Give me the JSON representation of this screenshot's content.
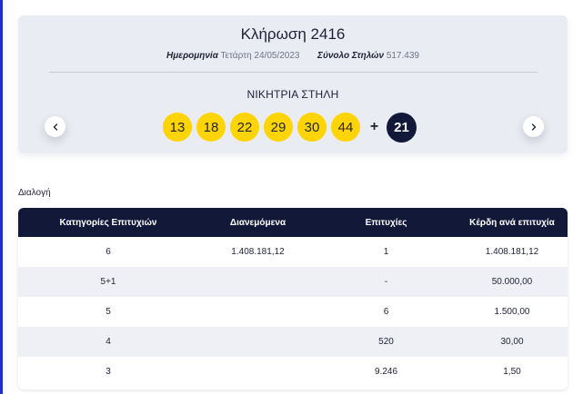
{
  "draw": {
    "title": "Κλήρωση 2416",
    "date_label": "Ημερομηνία",
    "date_value": "Τετάρτη 24/05/2023",
    "columns_label": "Σύνολο Στηλών",
    "columns_value": "517.439",
    "winning_label": "ΝΙΚΗΤΡΙΑ ΣΤΗΛΗ",
    "numbers": [
      "13",
      "18",
      "22",
      "29",
      "30",
      "44"
    ],
    "plus": "+",
    "joker": "21",
    "prev_icon": "chevron-left-icon",
    "next_icon": "chevron-right-icon"
  },
  "section": {
    "label": "Διαλογή"
  },
  "table": {
    "headers": [
      "Κατηγορίες Επιτυχιών",
      "Διανεμόμενα",
      "Επιτυχίες",
      "Κέρδη ανά επιτυχία"
    ],
    "rows": [
      [
        "6",
        "1.408.181,12",
        "1",
        "1.408.181,12"
      ],
      [
        "5+1",
        "",
        "-",
        "50.000,00"
      ],
      [
        "5",
        "",
        "6",
        "1.500,00"
      ],
      [
        "4",
        "",
        "520",
        "30,00"
      ],
      [
        "3",
        "",
        "9.246",
        "1,50"
      ]
    ]
  },
  "colors": {
    "accent_yellow": "#ffd400",
    "navy": "#111838",
    "border_blue": "#1a2fd0",
    "card_bg": "#e9ecf2",
    "row_alt": "#eef0f5"
  }
}
